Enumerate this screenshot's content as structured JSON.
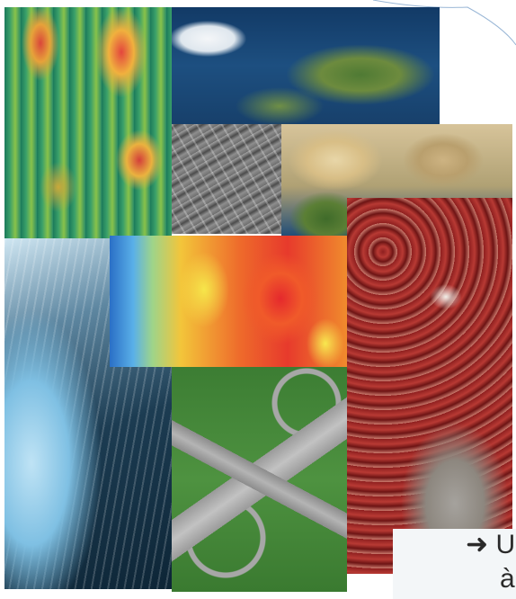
{
  "mosaic": {
    "tiles": [
      {
        "id": "terrain",
        "icon": "3d-terrain-relief-image"
      },
      {
        "id": "earth",
        "icon": "earth-satellite-image"
      },
      {
        "id": "africa",
        "icon": "africa-satellite-image"
      },
      {
        "id": "city",
        "icon": "grayscale-aerial-city-image"
      },
      {
        "id": "heat",
        "icon": "heatmap-terrain-image"
      },
      {
        "id": "forest",
        "icon": "snowy-forest-aerial-image"
      },
      {
        "id": "highway",
        "icon": "highway-interchange-aerial-image"
      },
      {
        "id": "redsat",
        "icon": "false-color-satellite-image"
      }
    ]
  },
  "panel": {
    "arrow": "➜",
    "line1": "U",
    "line2": "à"
  },
  "colors": {
    "background": "#ffffff",
    "panel": "#f3f6f8",
    "text": "#2a2a2a"
  }
}
